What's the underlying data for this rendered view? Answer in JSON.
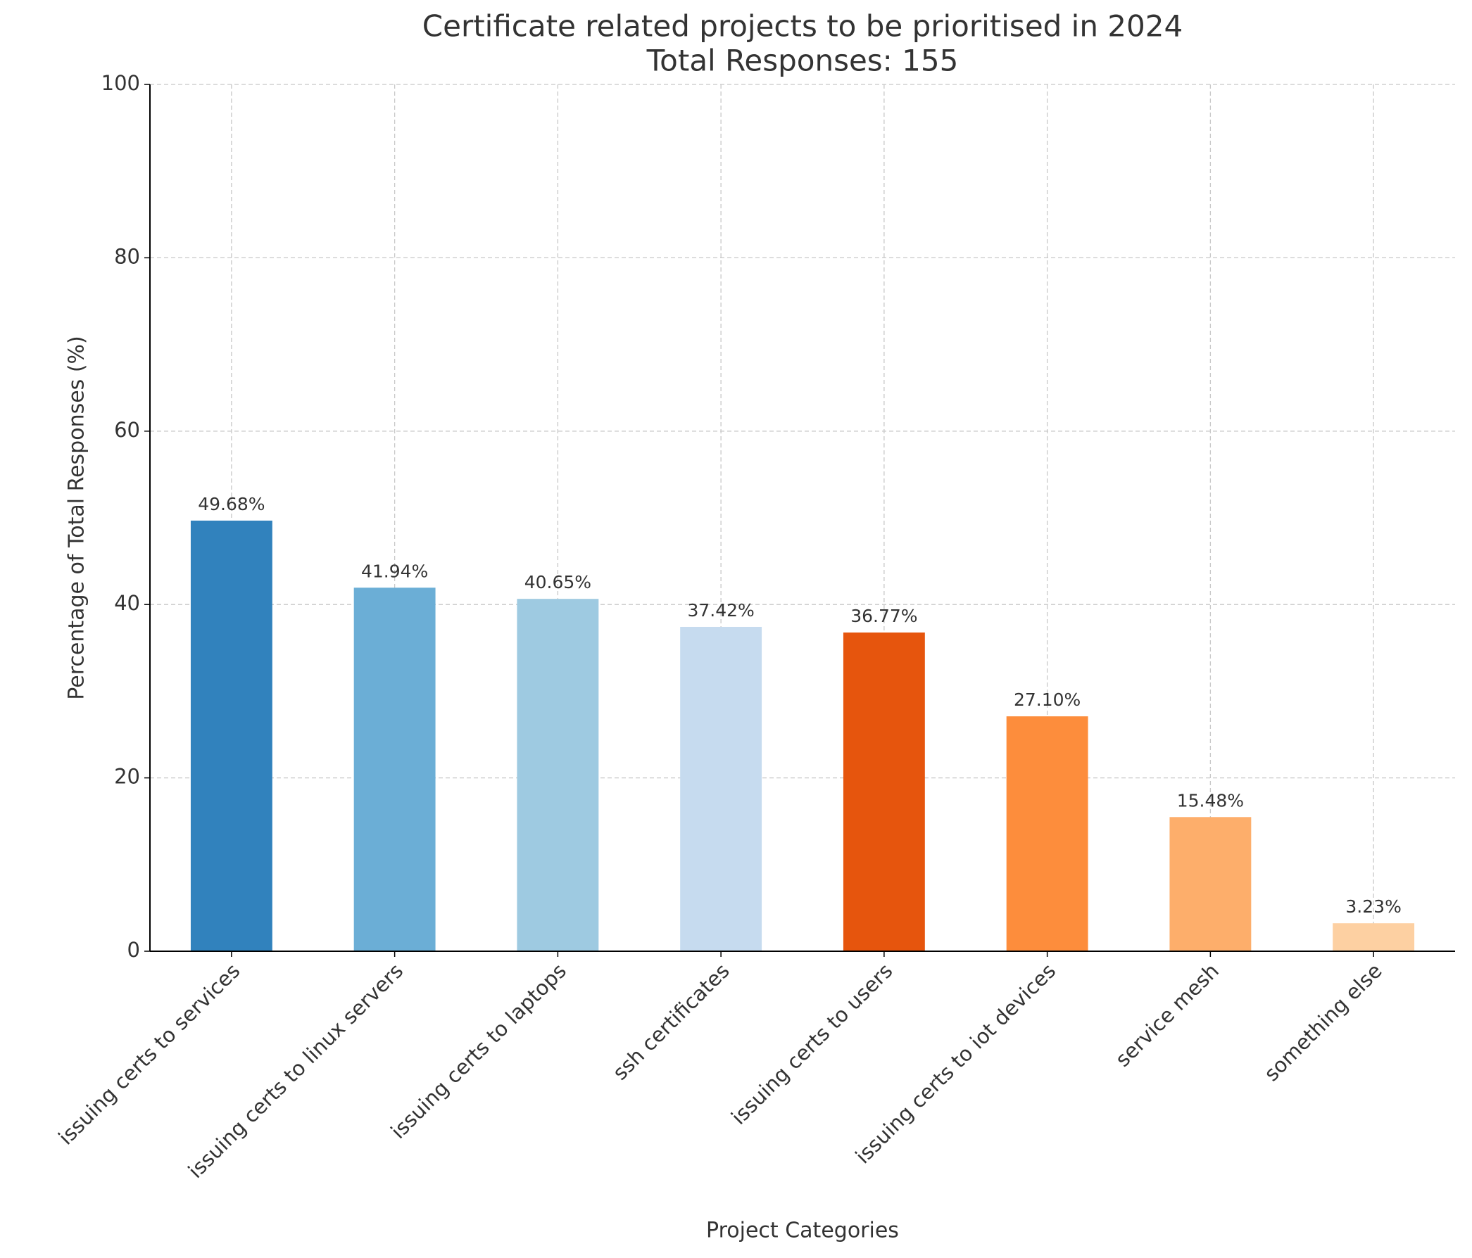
{
  "chart_data": {
    "type": "bar",
    "title": "Certificate related projects to be prioritised in 2024",
    "subtitle": "Total Responses: 155",
    "x_label": "Project Categories",
    "y_label": "Percentage of Total Responses (%)",
    "categories": [
      "issuing certs to services",
      "issuing certs to linux servers",
      "issuing certs to laptops",
      "ssh certificates",
      "issuing certs to users",
      "issuing certs to iot devices",
      "service mesh",
      "something else"
    ],
    "values": [
      49.68,
      41.94,
      40.65,
      37.42,
      36.77,
      27.1,
      15.48,
      3.23
    ],
    "value_labels": [
      "49.68%",
      "41.94%",
      "40.65%",
      "37.42%",
      "36.77%",
      "27.10%",
      "15.48%",
      "3.23%"
    ],
    "colors": [
      "#3182bd",
      "#6baed6",
      "#9ecae1",
      "#c6dbef",
      "#e6550d",
      "#fd8d3c",
      "#fdae6b",
      "#fdd0a2"
    ],
    "ylim": [
      0,
      100
    ],
    "yticks": [
      0,
      20,
      40,
      60,
      80,
      100
    ],
    "grid": true
  }
}
